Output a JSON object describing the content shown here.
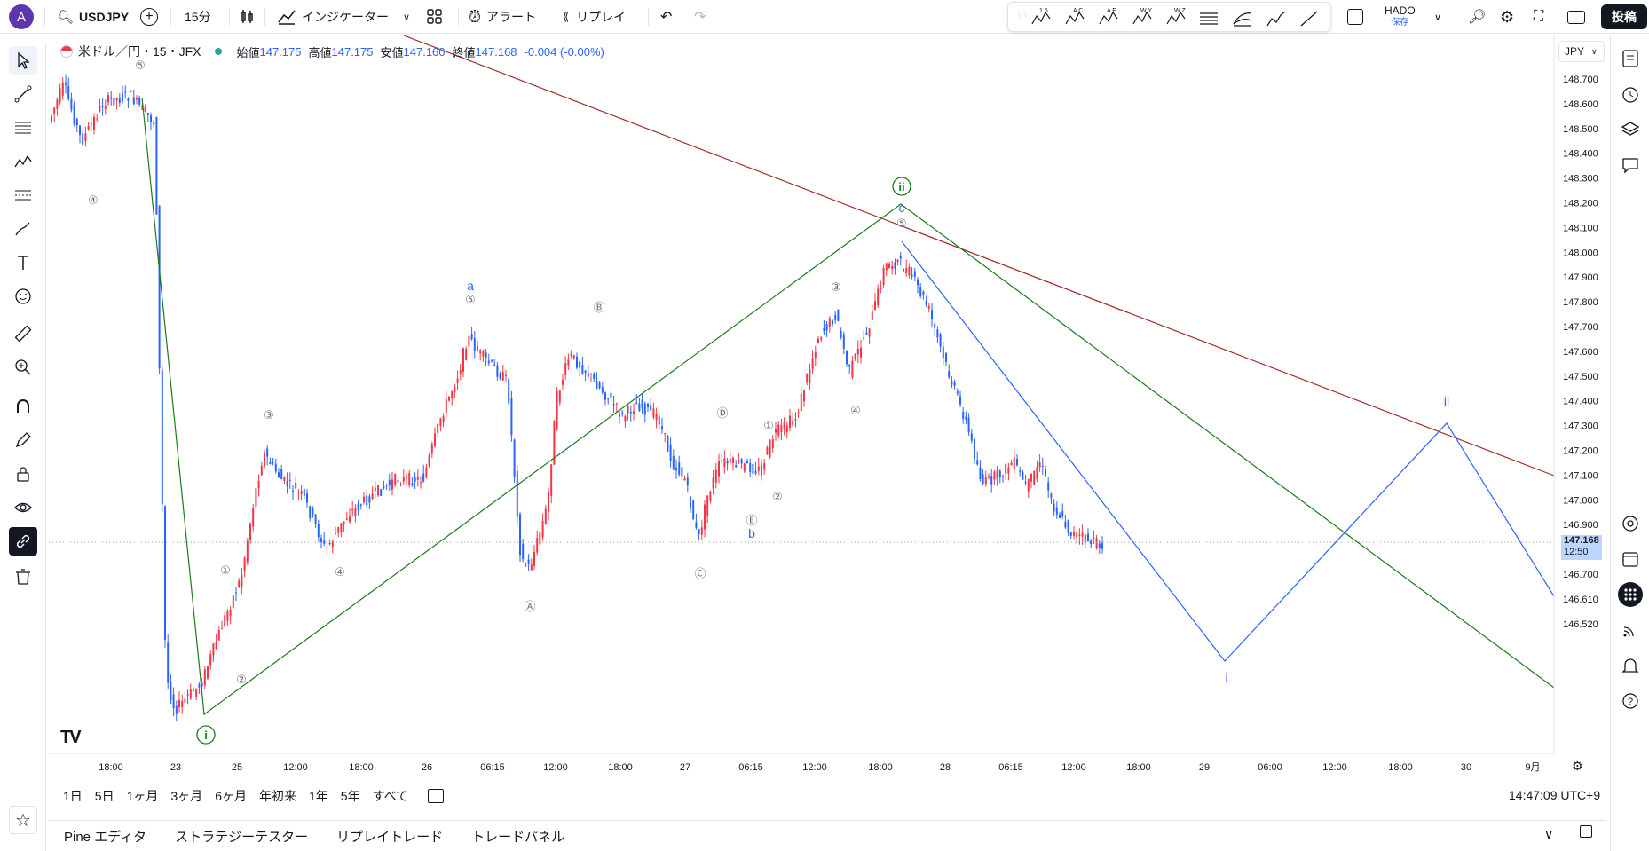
{
  "header": {
    "avatar_letter": "A",
    "symbol": "USDJPY",
    "interval": "15分",
    "indicators_label": "インジケーター",
    "alert_label": "アラート",
    "replay_label": "リプレイ",
    "layout_name": "HADO",
    "layout_status": "保存",
    "post_label": "投稿",
    "wave_tool_labels": [
      "1 5",
      "A C",
      "A E",
      "W Y",
      "W Z"
    ]
  },
  "legend": {
    "title": "米ドル／円・15・JFX",
    "open_label": "始値",
    "open": "147.175",
    "high_label": "高値",
    "high": "147.175",
    "low_label": "安値",
    "low": "147.160",
    "close_label": "終値",
    "close": "147.168",
    "change": "-0.004 (-0.00%)"
  },
  "price_scale": {
    "currency": "JPY",
    "ticks": [
      "148.700",
      "148.600",
      "148.500",
      "148.400",
      "148.300",
      "148.200",
      "148.100",
      "148.000",
      "147.900",
      "147.800",
      "147.700",
      "147.600",
      "147.500",
      "147.400",
      "147.300",
      "147.200",
      "147.100",
      "147.000",
      "146.900",
      "146.800",
      "146.700",
      "146.610",
      "146.520"
    ],
    "current_price": "147.168",
    "countdown": "12:50"
  },
  "time_scale": {
    "ticks": [
      "18:00",
      "23",
      "25",
      "12:00",
      "18:00",
      "26",
      "06:15",
      "12:00",
      "18:00",
      "27",
      "06:15",
      "12:00",
      "18:00",
      "28",
      "06:15",
      "12:00",
      "18:00",
      "29",
      "06:00",
      "12:00",
      "18:00",
      "30",
      "9月"
    ]
  },
  "wave_labels": {
    "circled_small": [
      "⑤",
      "④",
      "③",
      "①",
      "②",
      "④",
      "⑤",
      "Ⓑ",
      "Ⓐ",
      "③",
      "Ⓓ",
      "①",
      "②",
      "Ⓔ",
      "Ⓒ",
      "④",
      "⑤"
    ],
    "blue": [
      "a",
      "b",
      "c",
      "i",
      "ii"
    ],
    "green": [
      "i",
      "ii"
    ]
  },
  "colors": {
    "up_candle": "#f23645",
    "down_candle": "#2962ff",
    "green_line": "#1b7a1b",
    "red_line": "#a52a2a",
    "blue_line": "#2962ff"
  },
  "bottom": {
    "ranges": [
      "1日",
      "5日",
      "1ヶ月",
      "3ヶ月",
      "6ヶ月",
      "年初来",
      "1年",
      "5年",
      "すべて"
    ],
    "clock": "14:47:09 UTC+9",
    "panels": [
      "Pine エディタ",
      "ストラテジーテスター",
      "リプレイトレード",
      "トレードパネル"
    ]
  }
}
